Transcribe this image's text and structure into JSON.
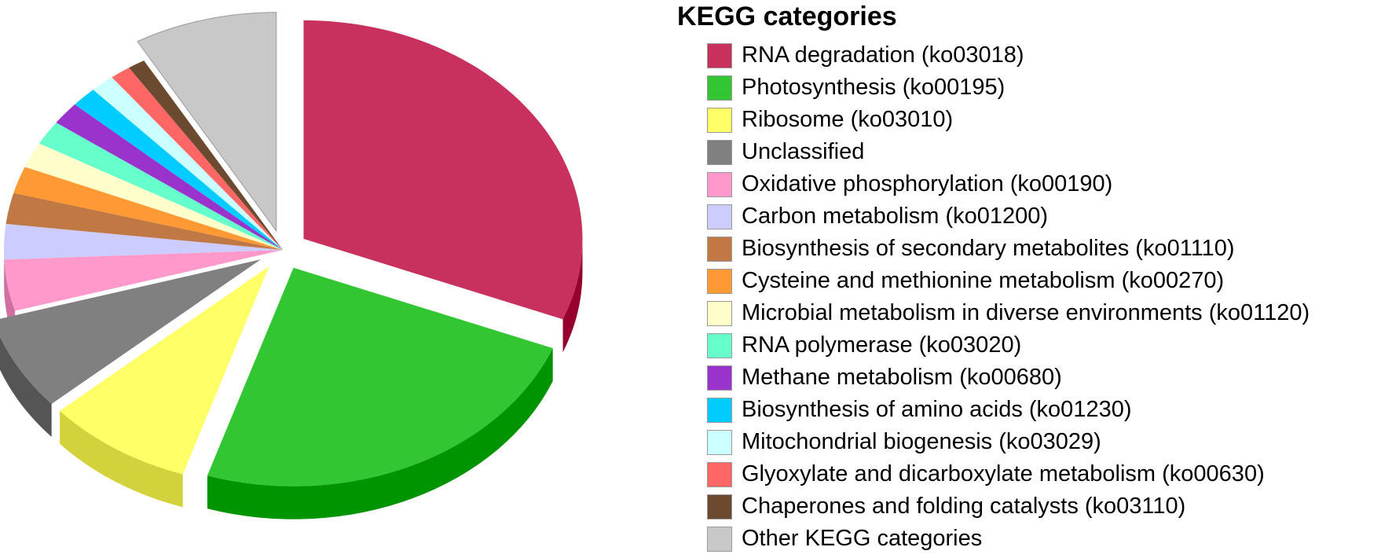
{
  "chart_data": {
    "type": "pie",
    "title": "KEGG categories",
    "legend_position": "right",
    "style": "3d-exploded",
    "slices": [
      {
        "label": "RNA degradation (ko03018)",
        "value": 31.0,
        "color": "#C8305E",
        "side": "#96002F"
      },
      {
        "label": "Photosynthesis (ko00195)",
        "value": 24.0,
        "color": "#33C633",
        "side": "#009400"
      },
      {
        "label": "Ribosome (ko03010)",
        "value": 8.5,
        "color": "#FFFF66",
        "side": "#D2D23C"
      },
      {
        "label": "Unclassified",
        "value": 7.0,
        "color": "#808080",
        "side": "#555555"
      },
      {
        "label": "Oxidative phosphorylation (ko00190)",
        "value": 3.8,
        "color": "#FF99CC",
        "side": "#D070A0"
      },
      {
        "label": "Carbon metabolism (ko01200)",
        "value": 2.6,
        "color": "#CCCCFF",
        "side": "#A0A0D8"
      },
      {
        "label": "Biosynthesis of secondary metabolites (ko01110)",
        "value": 2.3,
        "color": "#C07844",
        "side": "#955528"
      },
      {
        "label": "Cysteine and methionine metabolism (ko00270)",
        "value": 2.0,
        "color": "#FF9933",
        "side": "#D07010"
      },
      {
        "label": "Microbial metabolism in diverse environments (ko01120)",
        "value": 1.9,
        "color": "#FFFFCC",
        "side": "#DADAA5"
      },
      {
        "label": "RNA polymerase (ko03020)",
        "value": 1.8,
        "color": "#66FFCC",
        "side": "#3BD5A2"
      },
      {
        "label": "Methane metabolism (ko00680)",
        "value": 1.7,
        "color": "#9933CC",
        "side": "#7210A5"
      },
      {
        "label": "Biosynthesis of amino acids (ko01230)",
        "value": 1.5,
        "color": "#00CCFF",
        "side": "#00A0D2"
      },
      {
        "label": "Mitochondrial biogenesis (ko03029)",
        "value": 1.4,
        "color": "#CCFFFF",
        "side": "#A2D5D5"
      },
      {
        "label": "Glyoxylate and dicarboxylate metabolism (ko00630)",
        "value": 1.2,
        "color": "#FF6666",
        "side": "#D23C3C"
      },
      {
        "label": "Chaperones and folding catalysts (ko03110)",
        "value": 1.0,
        "color": "#6B4A2F",
        "side": "#4A3018"
      },
      {
        "label": "Other KEGG categories",
        "value": 8.3,
        "color": "#C8C8C8",
        "side": "#A0A0A0"
      }
    ]
  }
}
